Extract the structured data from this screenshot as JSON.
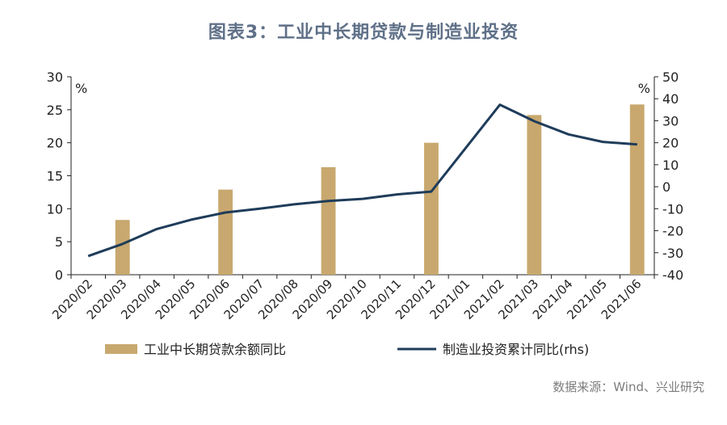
{
  "title": "图表3：工业中长期贷款与制造业投资",
  "source": "数据来源：Wind、兴业研究",
  "colors": {
    "bar": "#c8a86e",
    "line": "#1f3c5a",
    "axis": "#222222",
    "title": "#5f7088"
  },
  "chart_data": {
    "type": "bar+line",
    "categories": [
      "2020/02",
      "2020/03",
      "2020/04",
      "2020/05",
      "2020/06",
      "2020/07",
      "2020/08",
      "2020/09",
      "2020/10",
      "2020/11",
      "2020/12",
      "2021/01",
      "2021/02",
      "2021/03",
      "2021/04",
      "2021/05",
      "2021/06"
    ],
    "left_axis": {
      "unit": "%",
      "ylim": [
        0,
        30
      ],
      "ticks": [
        0,
        5,
        10,
        15,
        20,
        25,
        30
      ]
    },
    "right_axis": {
      "unit": "%",
      "ylim": [
        -40,
        50
      ],
      "ticks": [
        -40,
        -30,
        -20,
        -10,
        0,
        10,
        20,
        30,
        40,
        50
      ]
    },
    "series": [
      {
        "name": "工业中长期贷款余额同比",
        "type": "bar",
        "axis": "left",
        "values": [
          null,
          8.3,
          null,
          null,
          12.9,
          null,
          null,
          16.3,
          null,
          null,
          20.0,
          null,
          null,
          24.2,
          null,
          null,
          25.8
        ]
      },
      {
        "name": "制造业投资累计同比(rhs)",
        "type": "line",
        "axis": "right",
        "values": [
          -31.5,
          null,
          -19.2,
          null,
          -11.7,
          null,
          null,
          -6.5,
          null,
          null,
          -2.2,
          null,
          37.3,
          29.8,
          23.8,
          20.4,
          19.2
        ]
      }
    ],
    "line_interpolated_points": [
      {
        "x": "2020/03",
        "y": -26
      },
      {
        "x": "2020/05",
        "y": -15
      },
      {
        "x": "2020/07",
        "y": -10
      },
      {
        "x": "2020/08",
        "y": -8
      },
      {
        "x": "2020/10",
        "y": -5.5
      },
      {
        "x": "2020/11",
        "y": -3.5
      }
    ],
    "legend": {
      "position": "bottom"
    },
    "grid": false
  }
}
